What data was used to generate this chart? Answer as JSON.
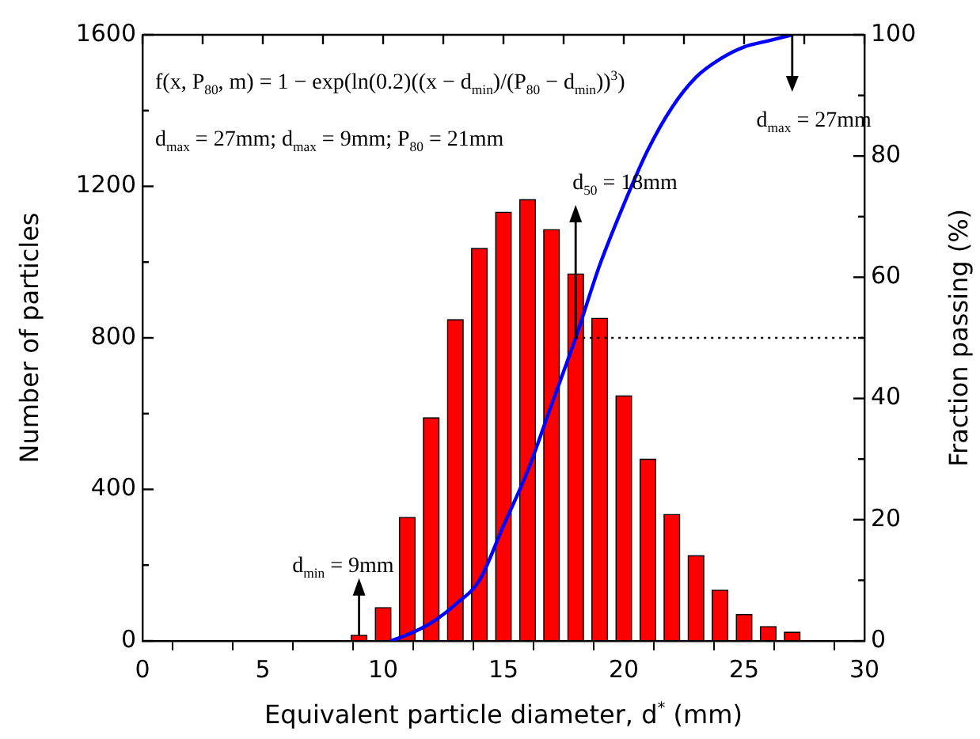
{
  "chart_data": {
    "type": "bar",
    "xlabel": "Equivalent particle diameter, d$^{*}$ (mm)",
    "ylabel": "Number of particles",
    "y2label": "Fraction passing (%)",
    "x": [
      9,
      10,
      11,
      12,
      13,
      14,
      15,
      16,
      17,
      18,
      19,
      20,
      21,
      22,
      23,
      24,
      25,
      26,
      27
    ],
    "series": [
      {
        "color": "#ff0000",
        "values": [
          15,
          88,
          326,
          589,
          848,
          1036,
          1132,
          1165,
          1086,
          969,
          852,
          647,
          480,
          334,
          225,
          134,
          70,
          38,
          23
        ]
      },
      {
        "type": "line",
        "axis": "y2",
        "color": "#0000ff",
        "x": [
          10.3,
          11,
          12,
          13,
          14,
          15,
          16,
          17,
          18,
          19,
          20,
          21,
          22,
          23,
          24,
          25,
          26,
          27
        ],
        "values": [
          0,
          1,
          3,
          6,
          10,
          19,
          28,
          39,
          50,
          62,
          72,
          81,
          88,
          93,
          96,
          98,
          99,
          100
        ]
      }
    ],
    "xlim": [
      0,
      30
    ],
    "xticks": [
      0,
      {
        "value": 2.5,
        "label": null
      },
      5,
      {
        "value": 7.5,
        "label": null
      },
      10,
      {
        "value": 12.5,
        "label": null
      },
      15,
      {
        "value": 17.5,
        "label": null
      },
      20,
      {
        "value": 22.5,
        "label": null
      },
      25,
      {
        "value": 27.5,
        "label": null
      },
      30
    ],
    "ylim": [
      0,
      1600
    ],
    "yticks": [
      0,
      {
        "value": 200,
        "label": null
      },
      400,
      {
        "value": 600,
        "label": null
      },
      800,
      {
        "value": 1000,
        "label": null
      },
      1200,
      {
        "value": 1400,
        "label": null
      },
      1600
    ],
    "y2lim": [
      0,
      100
    ],
    "y2ticks": [
      0,
      {
        "value": 10,
        "label": null
      },
      20,
      {
        "value": 30,
        "label": null
      },
      40,
      {
        "value": 50,
        "label": null
      },
      60,
      {
        "value": 70,
        "label": null
      },
      80,
      {
        "value": 90,
        "label": null
      },
      100
    ],
    "ref_lines": [
      {
        "axis": "y2",
        "value": 50,
        "line_style": "dotted",
        "color": "#000000"
      }
    ],
    "annotations": [
      "f(x, P$_{80}$, m) = 1 − exp(ln(0.2)((x − d$_{min}$)/(P$_{80}$ − d$_{min}$))$^{3}$)",
      "d$_{max}$ = 27mm; d$_{max}$ = 9mm; P$_{80}$ = 21mm",
      {
        "text": "d$_{min}$ = 9mm",
        "x": 9,
        "y": 15
      },
      {
        "text": "d$_{50}$ = 18mm",
        "x": 18,
        "y": 800
      },
      {
        "text": "d$_{max}$ = 27mm",
        "x": 27,
        "y": 1600
      }
    ]
  }
}
